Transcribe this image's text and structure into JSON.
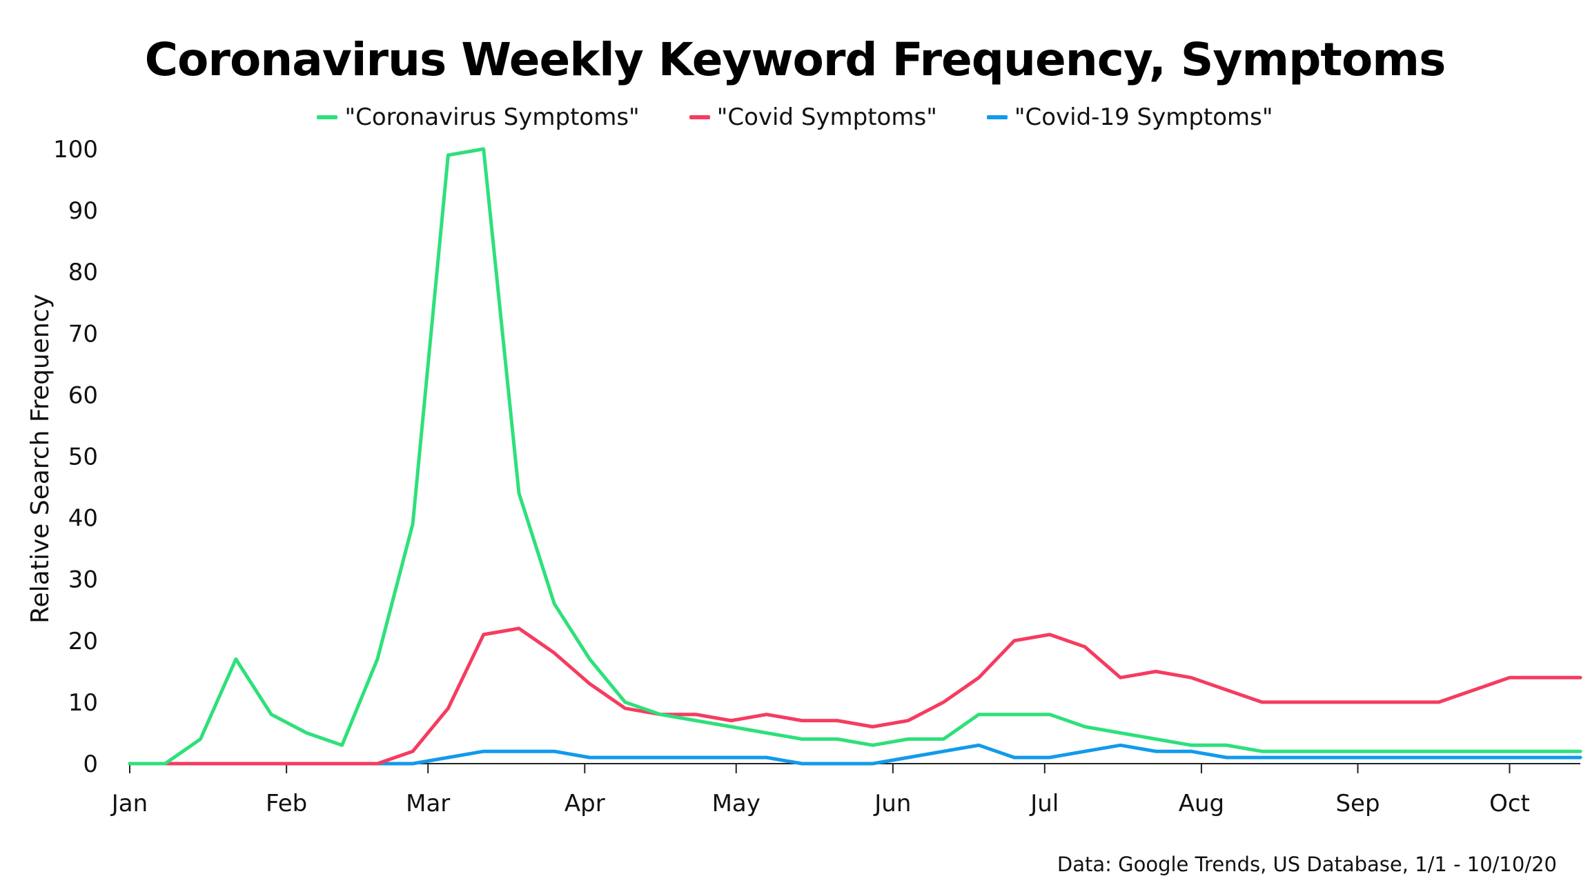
{
  "chart_data": {
    "type": "line",
    "title": "Coronavirus Weekly Keyword Frequency, Symptoms",
    "xlabel": "",
    "ylabel": "Relative Search Frequency",
    "ylim": [
      0,
      100
    ],
    "yticks": [
      0,
      10,
      20,
      30,
      40,
      50,
      60,
      70,
      80,
      90,
      100
    ],
    "xticks": [
      "Jan",
      "Feb",
      "Mar",
      "Apr",
      "May",
      "Jun",
      "Jul",
      "Aug",
      "Sep",
      "Oct"
    ],
    "x": [
      "Jan 1",
      "Jan 8",
      "Jan 15",
      "Jan 22",
      "Jan 29",
      "Feb 5",
      "Feb 12",
      "Feb 19",
      "Feb 26",
      "Mar 4",
      "Mar 11",
      "Mar 18",
      "Mar 25",
      "Apr 1",
      "Apr 8",
      "Apr 15",
      "Apr 22",
      "Apr 29",
      "May 6",
      "May 13",
      "May 20",
      "May 27",
      "Jun 3",
      "Jun 10",
      "Jun 17",
      "Jun 24",
      "Jul 1",
      "Jul 8",
      "Jul 15",
      "Jul 22",
      "Jul 29",
      "Aug 5",
      "Aug 12",
      "Aug 19",
      "Aug 26",
      "Sep 2",
      "Sep 9",
      "Sep 16",
      "Sep 23",
      "Sep 30",
      "Oct 7",
      "Oct 10"
    ],
    "grid": false,
    "legend_position": "top-center",
    "series": [
      {
        "name": "\"Coronavirus Symptoms\"",
        "color": "#2ee07a",
        "values": [
          0,
          0,
          4,
          17,
          8,
          5,
          3,
          17,
          39,
          99,
          100,
          44,
          26,
          17,
          10,
          8,
          7,
          6,
          5,
          4,
          4,
          3,
          4,
          4,
          8,
          8,
          8,
          6,
          5,
          4,
          3,
          3,
          2,
          2,
          2,
          2,
          2,
          2,
          2,
          2,
          2,
          2
        ]
      },
      {
        "name": "\"Covid Symptoms\"",
        "color": "#f53c60",
        "values": [
          0,
          0,
          0,
          0,
          0,
          0,
          0,
          0,
          2,
          9,
          21,
          22,
          18,
          13,
          9,
          8,
          8,
          7,
          8,
          7,
          7,
          6,
          7,
          10,
          14,
          20,
          21,
          19,
          14,
          15,
          14,
          12,
          10,
          10,
          10,
          10,
          10,
          10,
          12,
          14,
          14,
          14
        ]
      },
      {
        "name": "\"Covid-19 Symptoms\"",
        "color": "#129aea",
        "values": [
          0,
          0,
          0,
          0,
          0,
          0,
          0,
          0,
          0,
          1,
          2,
          2,
          2,
          1,
          1,
          1,
          1,
          1,
          1,
          0,
          0,
          0,
          1,
          2,
          3,
          1,
          1,
          2,
          3,
          2,
          2,
          1,
          1,
          1,
          1,
          1,
          1,
          1,
          1,
          1,
          1,
          1
        ]
      }
    ],
    "source": "Data: Google Trends, US Database, 1/1 - 10/10/20"
  }
}
